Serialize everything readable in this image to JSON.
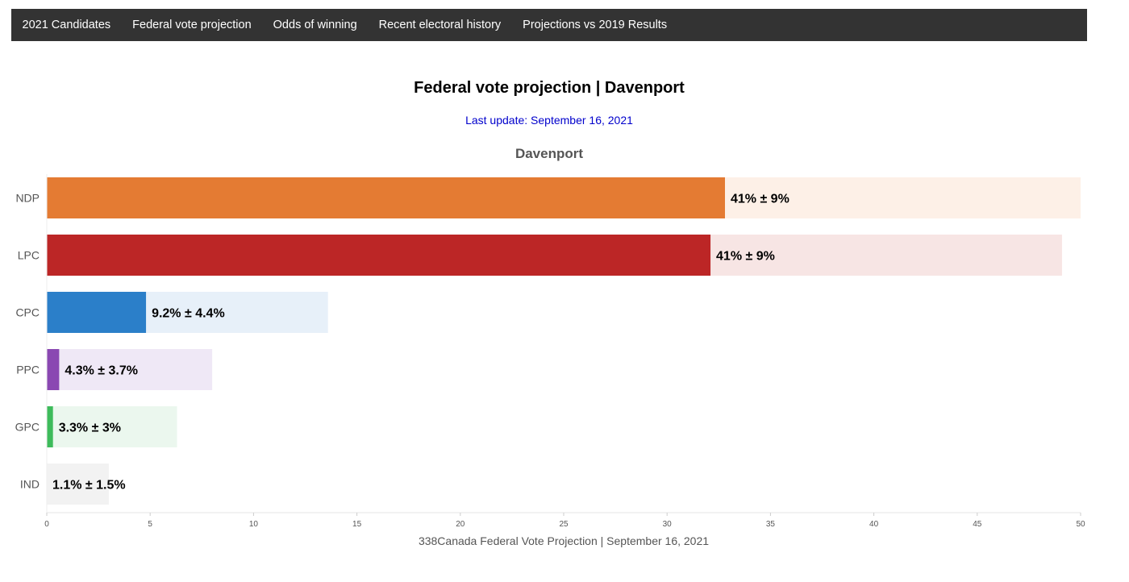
{
  "nav": {
    "items": [
      {
        "label": "2021 Candidates"
      },
      {
        "label": "Federal vote projection"
      },
      {
        "label": "Odds of winning"
      },
      {
        "label": "Recent electoral history"
      },
      {
        "label": "Projections vs 2019 Results"
      }
    ]
  },
  "page": {
    "title": "Federal vote projection | Davenport",
    "last_update": "Last update: September 16, 2021",
    "footer": "338Canada Federal Vote Projection | September 16, 2021"
  },
  "chart_data": {
    "type": "bar",
    "orientation": "horizontal",
    "title": "Davenport",
    "categories": [
      "NDP",
      "LPC",
      "CPC",
      "PPC",
      "GPC",
      "IND"
    ],
    "values": [
      32.8,
      32.1,
      4.8,
      0.6,
      0.3,
      0.0
    ],
    "range_max": [
      50.0,
      49.1,
      13.6,
      8.0,
      6.3,
      3.0
    ],
    "labels": [
      "41% ± 9%",
      "41% ± 9%",
      "9.2% ± 4.4%",
      "4.3% ± 3.7%",
      "3.3% ± 3%",
      "1.1% ± 1.5%"
    ],
    "colors": [
      "#e47b33",
      "#bc2626",
      "#2b7fc9",
      "#8a48b2",
      "#3dbb5b",
      "#bbbbbb"
    ],
    "range_colors": [
      "#fdf0e7",
      "#f7e5e4",
      "#e7f0f9",
      "#efe8f6",
      "#ebf7ee",
      "#f2f2f2"
    ],
    "xlim": [
      0,
      50
    ],
    "xticks": [
      0,
      5,
      10,
      15,
      20,
      25,
      30,
      35,
      40,
      45,
      50
    ]
  }
}
